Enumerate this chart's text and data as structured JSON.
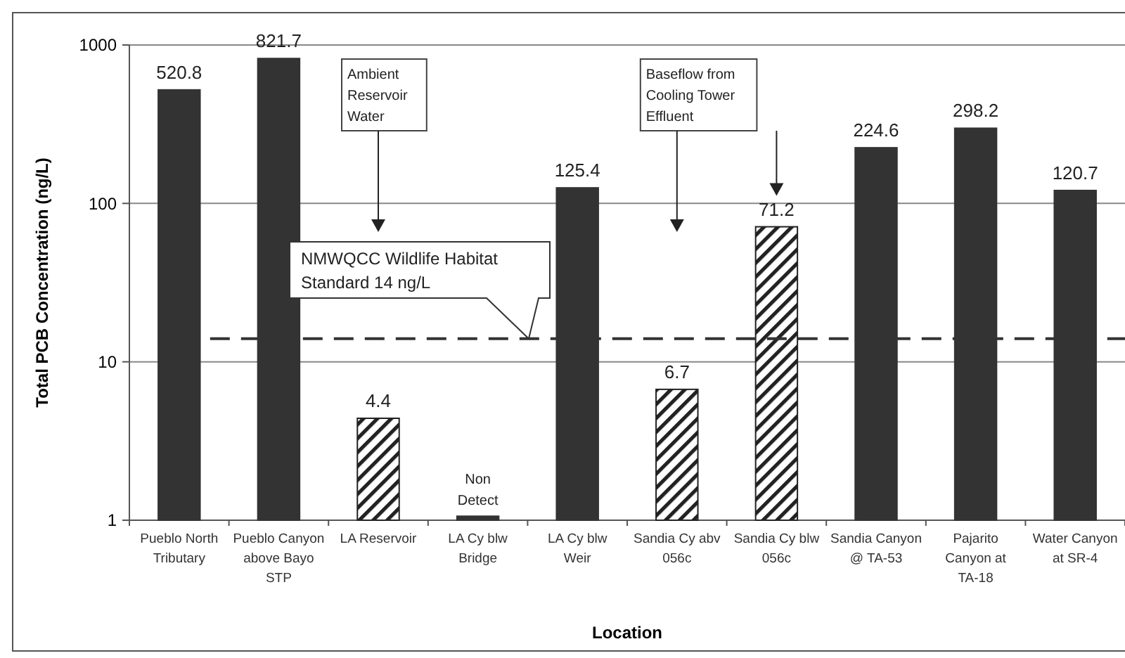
{
  "chart_data": {
    "type": "bar",
    "xlabel": "Location",
    "ylabel": "Total PCB Concentration (ng/L)",
    "categories": [
      "Pueblo North Tributary",
      "Pueblo Canyon above Bayo STP",
      "LA Reservoir",
      "LA Cy blw Bridge",
      "LA Cy blw Weir",
      "Sandia Cy abv 056c",
      "Sandia Cy blw 056c",
      "Sandia Canyon @ TA-53",
      "Pajarito Canyon at TA-18",
      "Water Canyon at SR-4"
    ],
    "series": [
      {
        "color": "#333333",
        "values": [
          520.8,
          821.7,
          null,
          1.06,
          125.4,
          null,
          null,
          224.6,
          298.2,
          120.7
        ],
        "value_labels": [
          "520.8",
          "821.7",
          null,
          "Non Detect",
          "125.4",
          null,
          null,
          "224.6",
          "298.2",
          "120.7"
        ]
      },
      {
        "color": "#222222",
        "values": [
          null,
          null,
          4.4,
          null,
          null,
          6.7,
          71.2,
          null,
          null,
          null
        ],
        "value_labels": [
          null,
          null,
          "4.4",
          null,
          null,
          "6.7",
          "71.2",
          null,
          null,
          null
        ]
      }
    ],
    "log": true,
    "ylim": [
      1,
      1000
    ],
    "yticks": [
      1,
      10,
      100,
      1000
    ],
    "grid": "y",
    "ref_lines": [
      {
        "axis": "y",
        "value": 14,
        "label": "NMWQCC Wildlife Habitat Standard 14 ng/L",
        "line_style": "dashed",
        "color": "#333333"
      }
    ],
    "annotations": [
      "Ambient Reservoir Water",
      "Baseflow from Cooling Tower Effluent"
    ]
  }
}
